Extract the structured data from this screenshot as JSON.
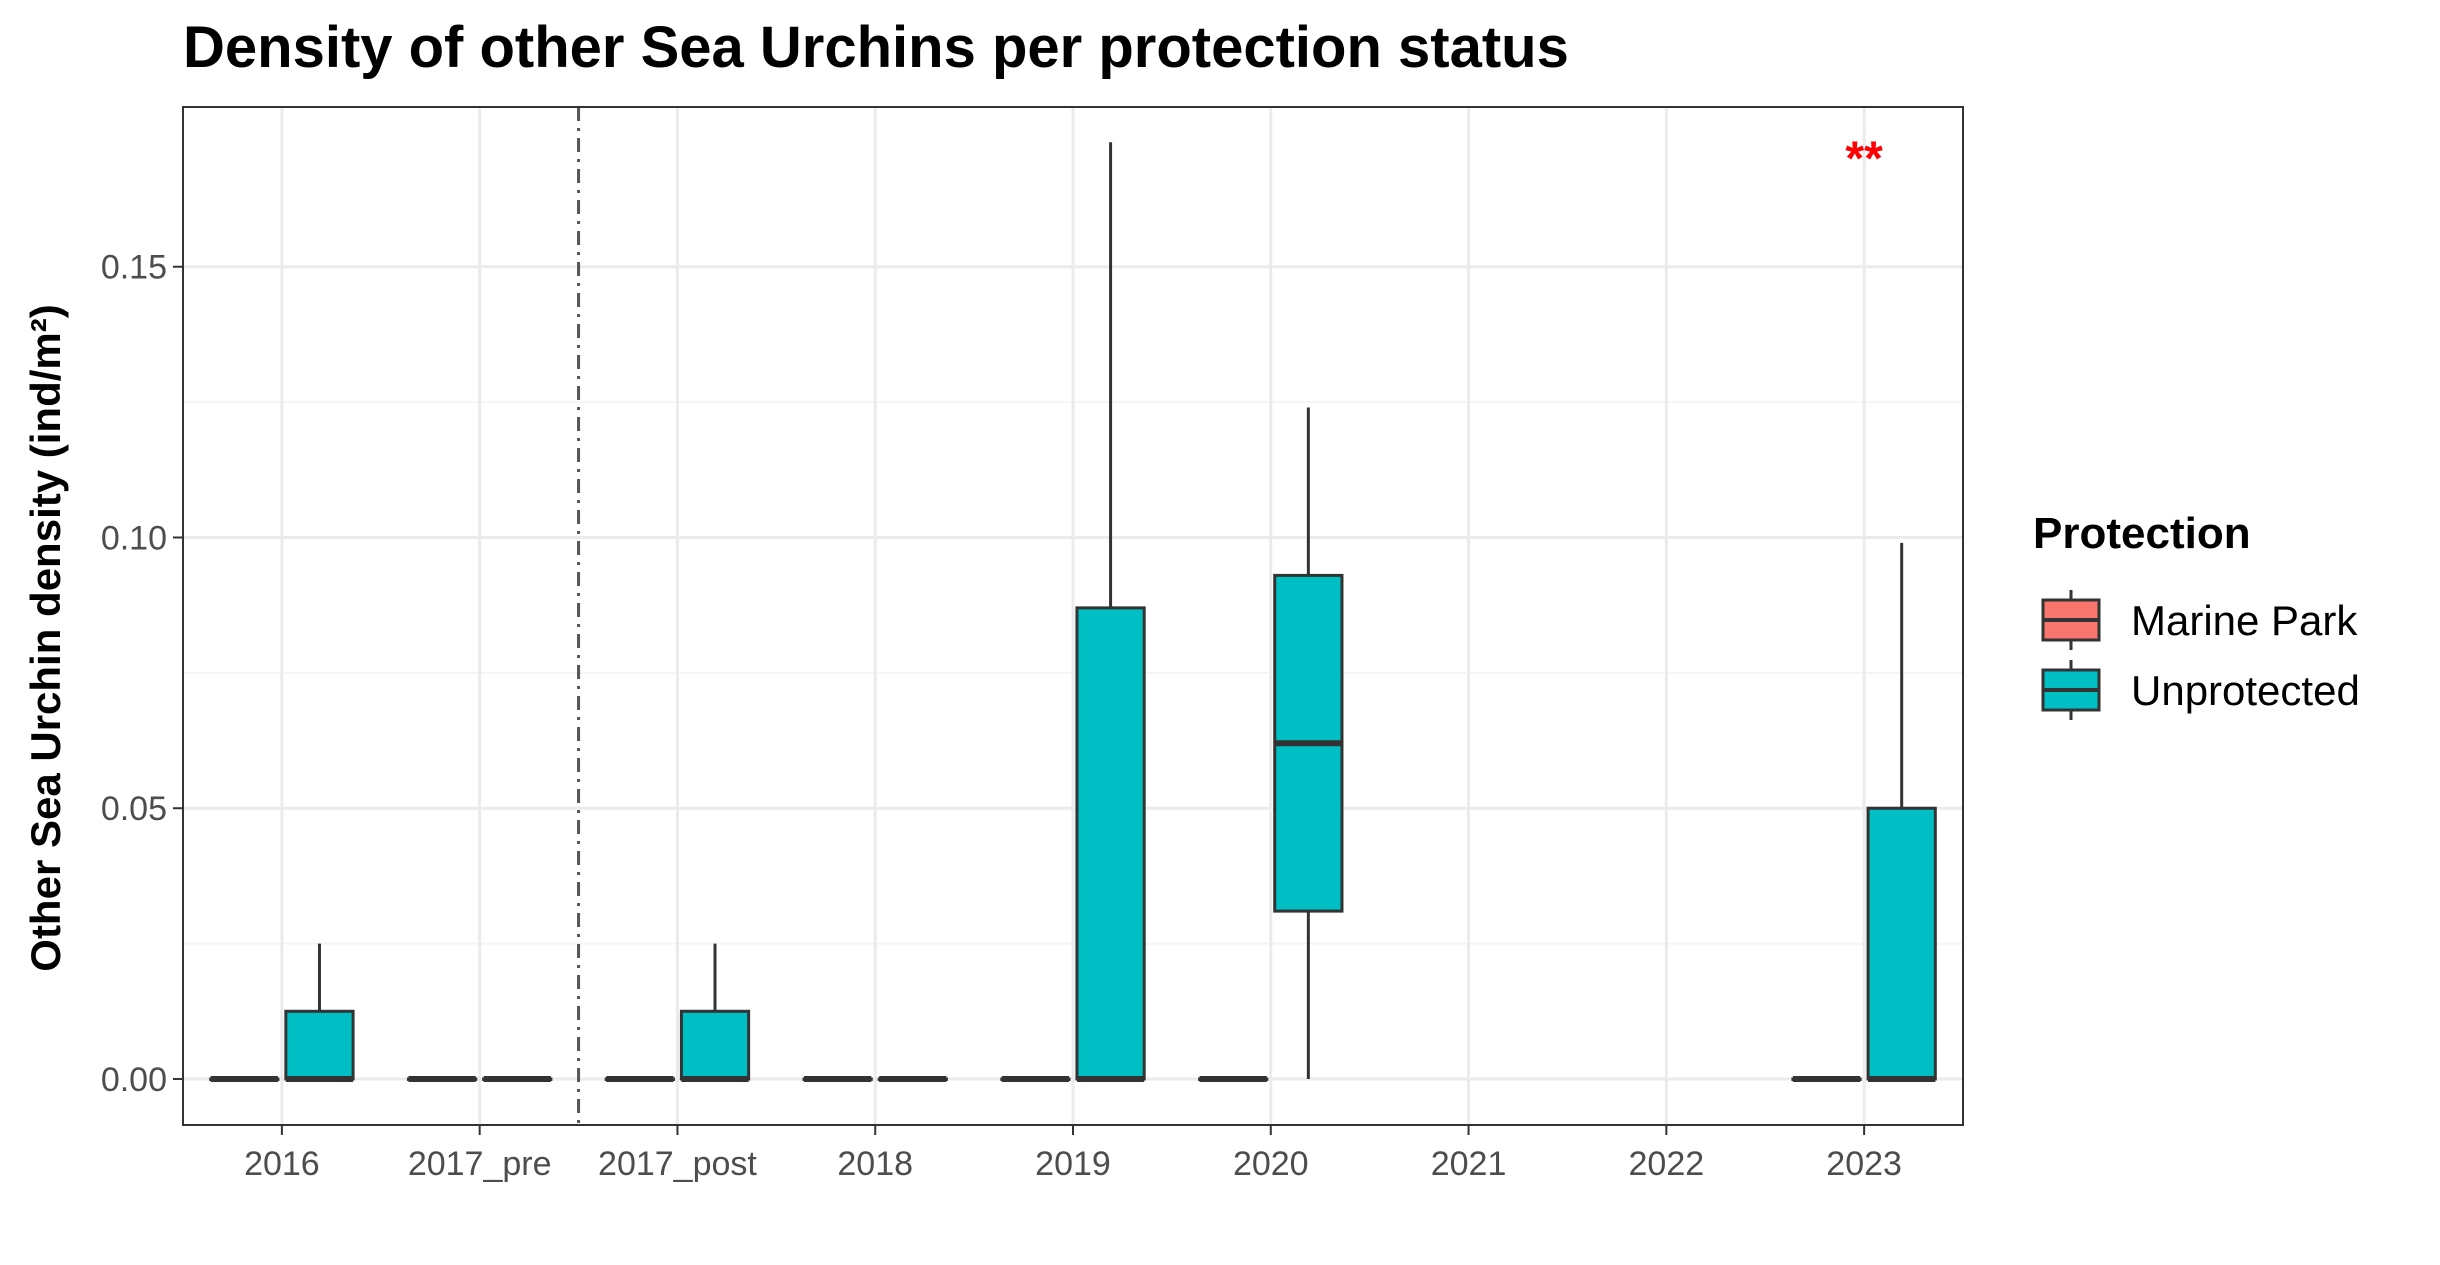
{
  "chart_data": {
    "type": "boxplot",
    "title": "Density of other Sea Urchins per protection status",
    "xlabel": "",
    "ylabel": "Other Sea Urchin density (ind/m²)",
    "ylim": [
      -0.0085,
      0.1795
    ],
    "yticks": [
      0.0,
      0.05,
      0.1,
      0.15
    ],
    "ytick_labels": [
      "0.00",
      "0.05",
      "0.10",
      "0.15"
    ],
    "categories": [
      "2016",
      "2017_pre",
      "2017_post",
      "2018",
      "2019",
      "2020",
      "2021",
      "2022",
      "2023"
    ],
    "grid": true,
    "legend": {
      "title": "Protection",
      "placement": "right",
      "entries": [
        "Marine Park",
        "Unprotected"
      ]
    },
    "series": [
      {
        "name": "Marine Park",
        "color": "#F8766D",
        "boxes": [
          {
            "category": "2016",
            "min": 0,
            "q1": 0,
            "median": 0,
            "q3": 0,
            "max": 0
          },
          {
            "category": "2017_pre",
            "min": 0,
            "q1": 0,
            "median": 0,
            "q3": 0,
            "max": 0
          },
          {
            "category": "2017_post",
            "min": 0,
            "q1": 0,
            "median": 0,
            "q3": 0,
            "max": 0
          },
          {
            "category": "2018",
            "min": 0,
            "q1": 0,
            "median": 0,
            "q3": 0,
            "max": 0
          },
          {
            "category": "2019",
            "min": 0,
            "q1": 0,
            "median": 0,
            "q3": 0,
            "max": 0
          },
          {
            "category": "2020",
            "min": 0,
            "q1": 0,
            "median": 0,
            "q3": 0,
            "max": 0
          },
          {
            "category": "2023",
            "min": 0,
            "q1": 0,
            "median": 0,
            "q3": 0,
            "max": 0
          }
        ]
      },
      {
        "name": "Unprotected",
        "color": "#00BFC4",
        "boxes": [
          {
            "category": "2016",
            "min": 0,
            "q1": 0,
            "median": 0,
            "q3": 0.0125,
            "max": 0.025
          },
          {
            "category": "2017_pre",
            "min": 0,
            "q1": 0,
            "median": 0,
            "q3": 0,
            "max": 0
          },
          {
            "category": "2017_post",
            "min": 0,
            "q1": 0,
            "median": 0,
            "q3": 0.0125,
            "max": 0.025
          },
          {
            "category": "2018",
            "min": 0,
            "q1": 0,
            "median": 0,
            "q3": 0,
            "max": 0
          },
          {
            "category": "2019",
            "min": 0,
            "q1": 0,
            "median": 0,
            "q3": 0.087,
            "max": 0.173
          },
          {
            "category": "2020",
            "min": 0,
            "q1": 0.031,
            "median": 0.062,
            "q3": 0.093,
            "max": 0.124
          },
          {
            "category": "2023",
            "min": 0,
            "q1": 0,
            "median": 0,
            "q3": 0.05,
            "max": 0.099
          }
        ]
      }
    ],
    "reference_line": {
      "between": [
        "2017_pre",
        "2017_post"
      ],
      "style": "dashdot"
    },
    "annotations": [
      {
        "category": "2023",
        "y": 0.17,
        "text": "**",
        "color": "#ff0000"
      }
    ]
  }
}
